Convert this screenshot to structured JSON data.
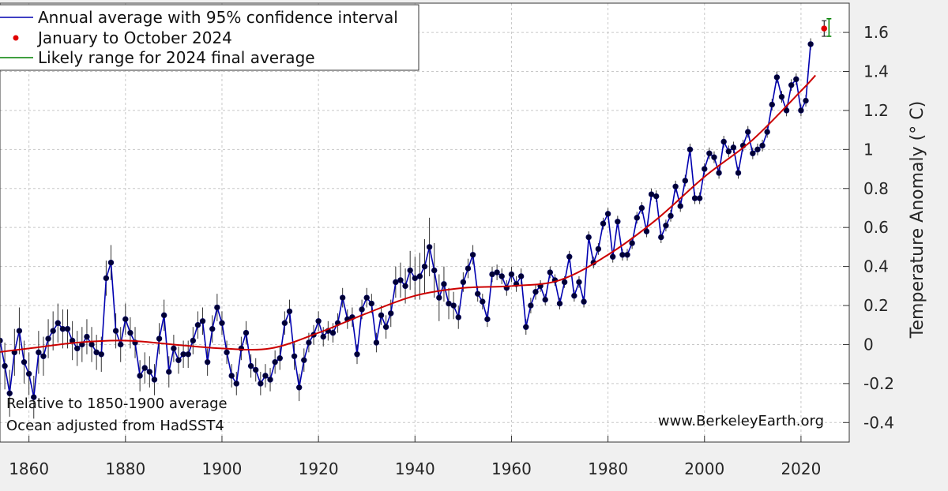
{
  "chart_data": {
    "type": "line",
    "ylabel": "Temperature Anomaly (° C)",
    "xlabel": "",
    "xlim": [
      1854,
      2030
    ],
    "ylim": [
      -0.5,
      1.75
    ],
    "x_ticks": [
      1860,
      1880,
      1900,
      1920,
      1940,
      1960,
      1980,
      2000,
      2020
    ],
    "y_ticks": [
      -0.4,
      -0.2,
      0,
      0.2,
      0.4,
      0.6,
      0.8,
      1,
      1.2,
      1.4,
      1.6
    ],
    "grid": true,
    "legend_position": "top-left",
    "colors": {
      "annual": "#0000b0",
      "markers": "#000033",
      "errorbars": "#333333",
      "trend": "#cc0000",
      "ytd_2024": "#e00000",
      "likely_range": "#008000"
    },
    "legend": [
      {
        "label": "Annual average with 95% confidence interval",
        "marker": "line",
        "color": "#0000b0"
      },
      {
        "label": "January to October 2024",
        "marker": "dot",
        "color": "#e00000"
      },
      {
        "label": "Likely range for 2024 final average",
        "marker": "line",
        "color": "#008000"
      }
    ],
    "annotations": {
      "relative_note": "Relative to 1850-1900 average",
      "ocean_note": "Ocean adjusted from HadSST4",
      "source": "www.BerkeleyEarth.org"
    },
    "annual_years_start": 1850,
    "annual_values": [
      -0.08,
      -0.05,
      -0.03,
      0.02,
      0.02,
      -0.11,
      -0.25,
      -0.04,
      0.07,
      -0.09,
      -0.15,
      -0.27,
      -0.04,
      -0.06,
      0.03,
      0.07,
      0.11,
      0.08,
      0.08,
      0.02,
      -0.02,
      0.0,
      0.04,
      0.0,
      -0.04,
      -0.05,
      0.34,
      0.42,
      0.07,
      0.0,
      0.13,
      0.06,
      0.01,
      -0.16,
      -0.12,
      -0.14,
      -0.18,
      0.03,
      0.15,
      -0.14,
      -0.02,
      -0.08,
      -0.05,
      -0.05,
      0.02,
      0.1,
      0.12,
      -0.09,
      0.08,
      0.19,
      0.11,
      -0.04,
      -0.16,
      -0.2,
      -0.02,
      0.06,
      -0.11,
      -0.13,
      -0.2,
      -0.16,
      -0.18,
      -0.09,
      -0.07,
      0.11,
      0.17,
      -0.06,
      -0.22,
      -0.08,
      0.01,
      0.05,
      0.12,
      0.04,
      0.07,
      0.06,
      0.11,
      0.24,
      0.13,
      0.14,
      -0.05,
      0.18,
      0.24,
      0.21,
      0.01,
      0.15,
      0.09,
      0.16,
      0.32,
      0.33,
      0.3,
      0.38,
      0.34,
      0.35,
      0.4,
      0.5,
      0.38,
      0.24,
      0.31,
      0.21,
      0.2,
      0.14,
      0.32,
      0.39,
      0.46,
      0.26,
      0.22,
      0.13,
      0.36,
      0.37,
      0.35,
      0.29,
      0.36,
      0.31,
      0.35,
      0.09,
      0.2,
      0.27,
      0.3,
      0.23,
      0.37,
      0.33,
      0.21,
      0.32,
      0.45,
      0.25,
      0.32,
      0.22,
      0.55,
      0.42,
      0.49,
      0.62,
      0.67,
      0.45,
      0.63,
      0.46,
      0.46,
      0.52,
      0.65,
      0.7,
      0.58,
      0.77,
      0.76,
      0.55,
      0.61,
      0.66,
      0.81,
      0.71,
      0.84,
      1.0,
      0.75,
      0.75,
      0.9,
      0.98,
      0.96,
      0.88,
      1.04,
      0.99,
      1.01,
      0.88,
      1.02,
      1.09,
      0.98,
      1.0,
      1.02,
      1.09,
      1.23,
      1.37,
      1.27,
      1.2,
      1.33,
      1.36,
      1.2,
      1.25,
      1.54
    ],
    "annual_uncertainty": [
      0.14,
      0.14,
      0.13,
      0.13,
      0.12,
      0.12,
      0.12,
      0.12,
      0.12,
      0.11,
      0.11,
      0.11,
      0.11,
      0.1,
      0.1,
      0.1,
      0.1,
      0.1,
      0.1,
      0.1,
      0.09,
      0.09,
      0.09,
      0.09,
      0.09,
      0.09,
      0.09,
      0.09,
      0.09,
      0.09,
      0.08,
      0.08,
      0.08,
      0.08,
      0.08,
      0.08,
      0.08,
      0.08,
      0.08,
      0.08,
      0.07,
      0.07,
      0.07,
      0.07,
      0.07,
      0.07,
      0.07,
      0.07,
      0.07,
      0.07,
      0.06,
      0.06,
      0.06,
      0.06,
      0.06,
      0.06,
      0.06,
      0.06,
      0.06,
      0.06,
      0.06,
      0.06,
      0.06,
      0.06,
      0.06,
      0.07,
      0.07,
      0.06,
      0.05,
      0.05,
      0.05,
      0.05,
      0.05,
      0.05,
      0.05,
      0.05,
      0.05,
      0.05,
      0.05,
      0.05,
      0.05,
      0.05,
      0.05,
      0.05,
      0.06,
      0.07,
      0.08,
      0.09,
      0.09,
      0.1,
      0.11,
      0.12,
      0.14,
      0.15,
      0.14,
      0.12,
      0.09,
      0.08,
      0.07,
      0.06,
      0.05,
      0.05,
      0.05,
      0.04,
      0.04,
      0.04,
      0.04,
      0.04,
      0.04,
      0.04,
      0.04,
      0.04,
      0.04,
      0.04,
      0.04,
      0.04,
      0.03,
      0.03,
      0.03,
      0.03,
      0.03,
      0.03,
      0.03,
      0.03,
      0.03,
      0.03,
      0.03,
      0.03,
      0.03,
      0.03,
      0.03,
      0.03,
      0.03,
      0.03,
      0.03,
      0.03,
      0.03,
      0.03,
      0.03,
      0.03,
      0.03,
      0.03,
      0.03,
      0.03,
      0.03,
      0.03,
      0.03,
      0.03,
      0.03,
      0.03,
      0.03,
      0.03,
      0.03,
      0.03,
      0.03,
      0.03,
      0.03,
      0.03,
      0.03,
      0.03,
      0.03,
      0.03,
      0.03,
      0.03,
      0.03,
      0.03,
      0.03,
      0.03,
      0.03,
      0.03,
      0.03,
      0.03,
      0.03,
      0.03,
      0.03
    ],
    "trend": {
      "x": [
        1850,
        1860,
        1870,
        1880,
        1890,
        1900,
        1910,
        1920,
        1930,
        1940,
        1950,
        1960,
        1970,
        1980,
        1990,
        2000,
        2010,
        2020,
        2023
      ],
      "y": [
        -0.05,
        -0.02,
        0.01,
        0.02,
        0.0,
        -0.02,
        -0.02,
        0.06,
        0.16,
        0.25,
        0.29,
        0.3,
        0.33,
        0.46,
        0.64,
        0.86,
        1.05,
        1.3,
        1.38
      ]
    },
    "ytd_2024": {
      "x": 2024.8,
      "y": 1.62,
      "err": 0.04
    },
    "likely_range_2024": {
      "x": 2025.8,
      "low": 1.58,
      "high": 1.67
    }
  }
}
